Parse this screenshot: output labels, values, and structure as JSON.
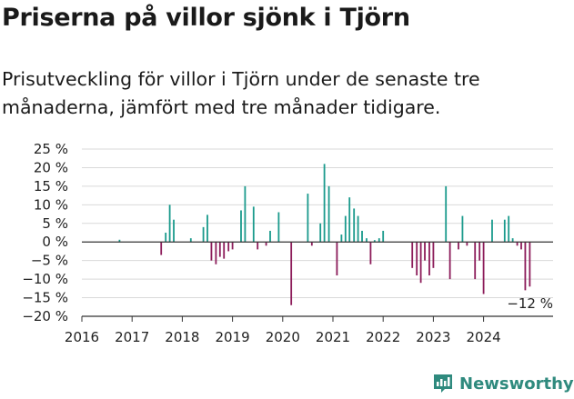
{
  "header": {
    "title": "Priserna på villor sjönk i Tjörn",
    "subtitle": "Prisutveckling för villor i Tjörn under de senaste tre månaderna, jämfört med tre månader tidigare."
  },
  "brand": {
    "name": "Newsworthy",
    "color": "#2f8a7e",
    "icon": "newsworthy-chart-icon"
  },
  "colors": {
    "positive": "#1a9a8c",
    "negative": "#8c1c5a",
    "grid": "#d9d9d9",
    "axis": "#333333"
  },
  "chart_data": {
    "type": "bar",
    "title": "Priserna på villor sjönk i Tjörn",
    "ylim": [
      -20,
      25
    ],
    "yticks": [
      {
        "value": 25,
        "label": "25 %"
      },
      {
        "value": 20,
        "label": "20 %"
      },
      {
        "value": 15,
        "label": "15 %"
      },
      {
        "value": 10,
        "label": "10 %"
      },
      {
        "value": 5,
        "label": "5 %"
      },
      {
        "value": 0,
        "label": "0 %"
      },
      {
        "value": -5,
        "label": "−5 %"
      },
      {
        "value": -10,
        "label": "−10 %"
      },
      {
        "value": -15,
        "label": "−15 %"
      },
      {
        "value": -20,
        "label": "−20 %"
      }
    ],
    "xlim": [
      2016,
      2025.5
    ],
    "xticks": [
      {
        "value": 2016,
        "label": "2016"
      },
      {
        "value": 2017,
        "label": "2017"
      },
      {
        "value": 2018,
        "label": "2018"
      },
      {
        "value": 2019,
        "label": "2019"
      },
      {
        "value": 2020,
        "label": "2020"
      },
      {
        "value": 2021,
        "label": "2021"
      },
      {
        "value": 2022,
        "label": "2022"
      },
      {
        "value": 2023,
        "label": "2023"
      },
      {
        "value": 2024,
        "label": "2024"
      }
    ],
    "grid": true,
    "annotation": {
      "text": "−12 %"
    },
    "points": [
      {
        "x": 2016.75,
        "y": 0.6
      },
      {
        "x": 2017.58,
        "y": -3.5
      },
      {
        "x": 2017.67,
        "y": 2.5
      },
      {
        "x": 2017.75,
        "y": 10
      },
      {
        "x": 2017.83,
        "y": 6
      },
      {
        "x": 2018.17,
        "y": 1
      },
      {
        "x": 2018.42,
        "y": 4
      },
      {
        "x": 2018.5,
        "y": 7.3
      },
      {
        "x": 2018.58,
        "y": -5
      },
      {
        "x": 2018.67,
        "y": -6
      },
      {
        "x": 2018.75,
        "y": -4
      },
      {
        "x": 2018.83,
        "y": -4.5
      },
      {
        "x": 2018.92,
        "y": -2.5
      },
      {
        "x": 2019.0,
        "y": -2
      },
      {
        "x": 2019.17,
        "y": 8.5
      },
      {
        "x": 2019.25,
        "y": 15
      },
      {
        "x": 2019.42,
        "y": 9.5
      },
      {
        "x": 2019.5,
        "y": -2
      },
      {
        "x": 2019.67,
        "y": -1
      },
      {
        "x": 2019.75,
        "y": 3
      },
      {
        "x": 2019.92,
        "y": 8
      },
      {
        "x": 2020.17,
        "y": -17
      },
      {
        "x": 2020.5,
        "y": 13
      },
      {
        "x": 2020.58,
        "y": -1
      },
      {
        "x": 2020.75,
        "y": 5
      },
      {
        "x": 2020.83,
        "y": 21
      },
      {
        "x": 2020.92,
        "y": 15
      },
      {
        "x": 2021.08,
        "y": -9
      },
      {
        "x": 2021.17,
        "y": 2
      },
      {
        "x": 2021.25,
        "y": 7
      },
      {
        "x": 2021.33,
        "y": 12
      },
      {
        "x": 2021.42,
        "y": 9
      },
      {
        "x": 2021.5,
        "y": 7
      },
      {
        "x": 2021.58,
        "y": 3
      },
      {
        "x": 2021.67,
        "y": 1
      },
      {
        "x": 2021.75,
        "y": -6
      },
      {
        "x": 2021.83,
        "y": 0.5
      },
      {
        "x": 2021.92,
        "y": 1
      },
      {
        "x": 2022.0,
        "y": 3
      },
      {
        "x": 2022.58,
        "y": -7
      },
      {
        "x": 2022.67,
        "y": -9
      },
      {
        "x": 2022.75,
        "y": -11
      },
      {
        "x": 2022.83,
        "y": -5
      },
      {
        "x": 2022.92,
        "y": -9
      },
      {
        "x": 2023.0,
        "y": -7
      },
      {
        "x": 2023.25,
        "y": 15
      },
      {
        "x": 2023.33,
        "y": -10
      },
      {
        "x": 2023.5,
        "y": -2
      },
      {
        "x": 2023.58,
        "y": 7
      },
      {
        "x": 2023.67,
        "y": -1
      },
      {
        "x": 2023.83,
        "y": -10
      },
      {
        "x": 2023.92,
        "y": -5
      },
      {
        "x": 2024.0,
        "y": -14
      },
      {
        "x": 2024.17,
        "y": 6
      },
      {
        "x": 2024.42,
        "y": 6
      },
      {
        "x": 2024.5,
        "y": 7
      },
      {
        "x": 2024.58,
        "y": 1
      },
      {
        "x": 2024.67,
        "y": -1
      },
      {
        "x": 2024.75,
        "y": -2
      },
      {
        "x": 2024.83,
        "y": -13
      },
      {
        "x": 2024.92,
        "y": -12
      }
    ]
  }
}
